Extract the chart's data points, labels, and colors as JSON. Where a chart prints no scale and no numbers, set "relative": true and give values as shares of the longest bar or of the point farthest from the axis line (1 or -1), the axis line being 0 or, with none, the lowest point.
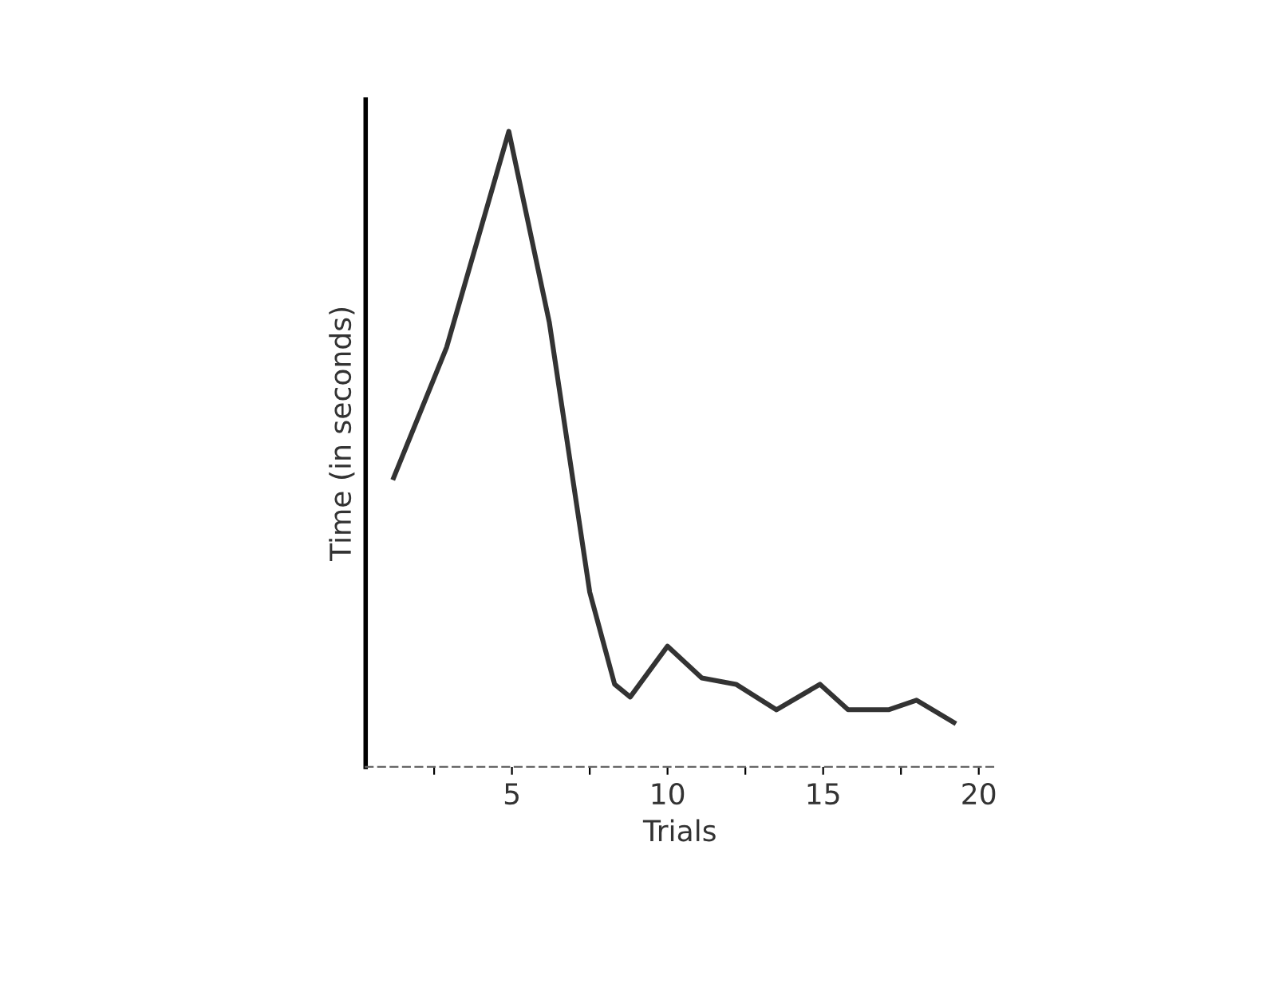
{
  "chart_data": {
    "type": "line",
    "xlabel": "Trials",
    "ylabel": "Time (in seconds)",
    "relative": true,
    "x": [
      1.2,
      2.9,
      4.9,
      6.2,
      7.5,
      8.3,
      8.8,
      10.0,
      11.1,
      12.2,
      13.5,
      14.9,
      15.8,
      17.1,
      18.0,
      19.2
    ],
    "series": [
      {
        "color": "#333333",
        "values": [
          0.455,
          0.66,
          1.0,
          0.7,
          0.275,
          0.13,
          0.11,
          0.19,
          0.14,
          0.13,
          0.09,
          0.13,
          0.09,
          0.09,
          0.105,
          0.07
        ]
      }
    ],
    "xlim": [
      0.3,
      20.5
    ],
    "xticks": [
      {
        "value": 2.5,
        "label": null
      },
      5,
      {
        "value": 7.5,
        "label": null
      },
      10,
      {
        "value": 12.5,
        "label": null
      },
      15,
      {
        "value": 17.5,
        "label": null
      },
      20
    ]
  }
}
